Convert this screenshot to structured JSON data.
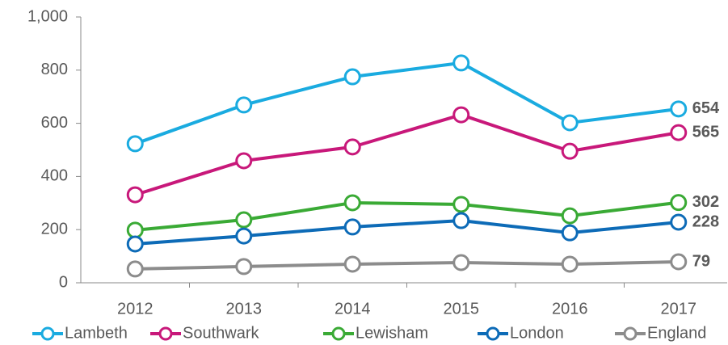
{
  "chart_data": {
    "type": "line",
    "categories": [
      "2012",
      "2013",
      "2014",
      "2015",
      "2016",
      "2017"
    ],
    "series": [
      {
        "name": "Lambeth",
        "color": "#1aabe0",
        "values": [
          523,
          669,
          775,
          827,
          602,
          654
        ]
      },
      {
        "name": "Southwark",
        "color": "#c8187a",
        "values": [
          331,
          459,
          511,
          632,
          495,
          565
        ]
      },
      {
        "name": "Lewisham",
        "color": "#3aaa35",
        "values": [
          198,
          237,
          301,
          295,
          252,
          302
        ]
      },
      {
        "name": "London",
        "color": "#0d6bb7",
        "values": [
          146,
          176,
          210,
          234,
          188,
          228
        ]
      },
      {
        "name": "England",
        "color": "#8c8c8c",
        "values": [
          52,
          61,
          70,
          76,
          70,
          79
        ]
      }
    ],
    "ylim": [
      0,
      1000
    ],
    "yticks": [
      0,
      200,
      400,
      600,
      800,
      {
        "value": 1000,
        "label": "1,000"
      }
    ],
    "legend": "bottom",
    "grid": false
  }
}
